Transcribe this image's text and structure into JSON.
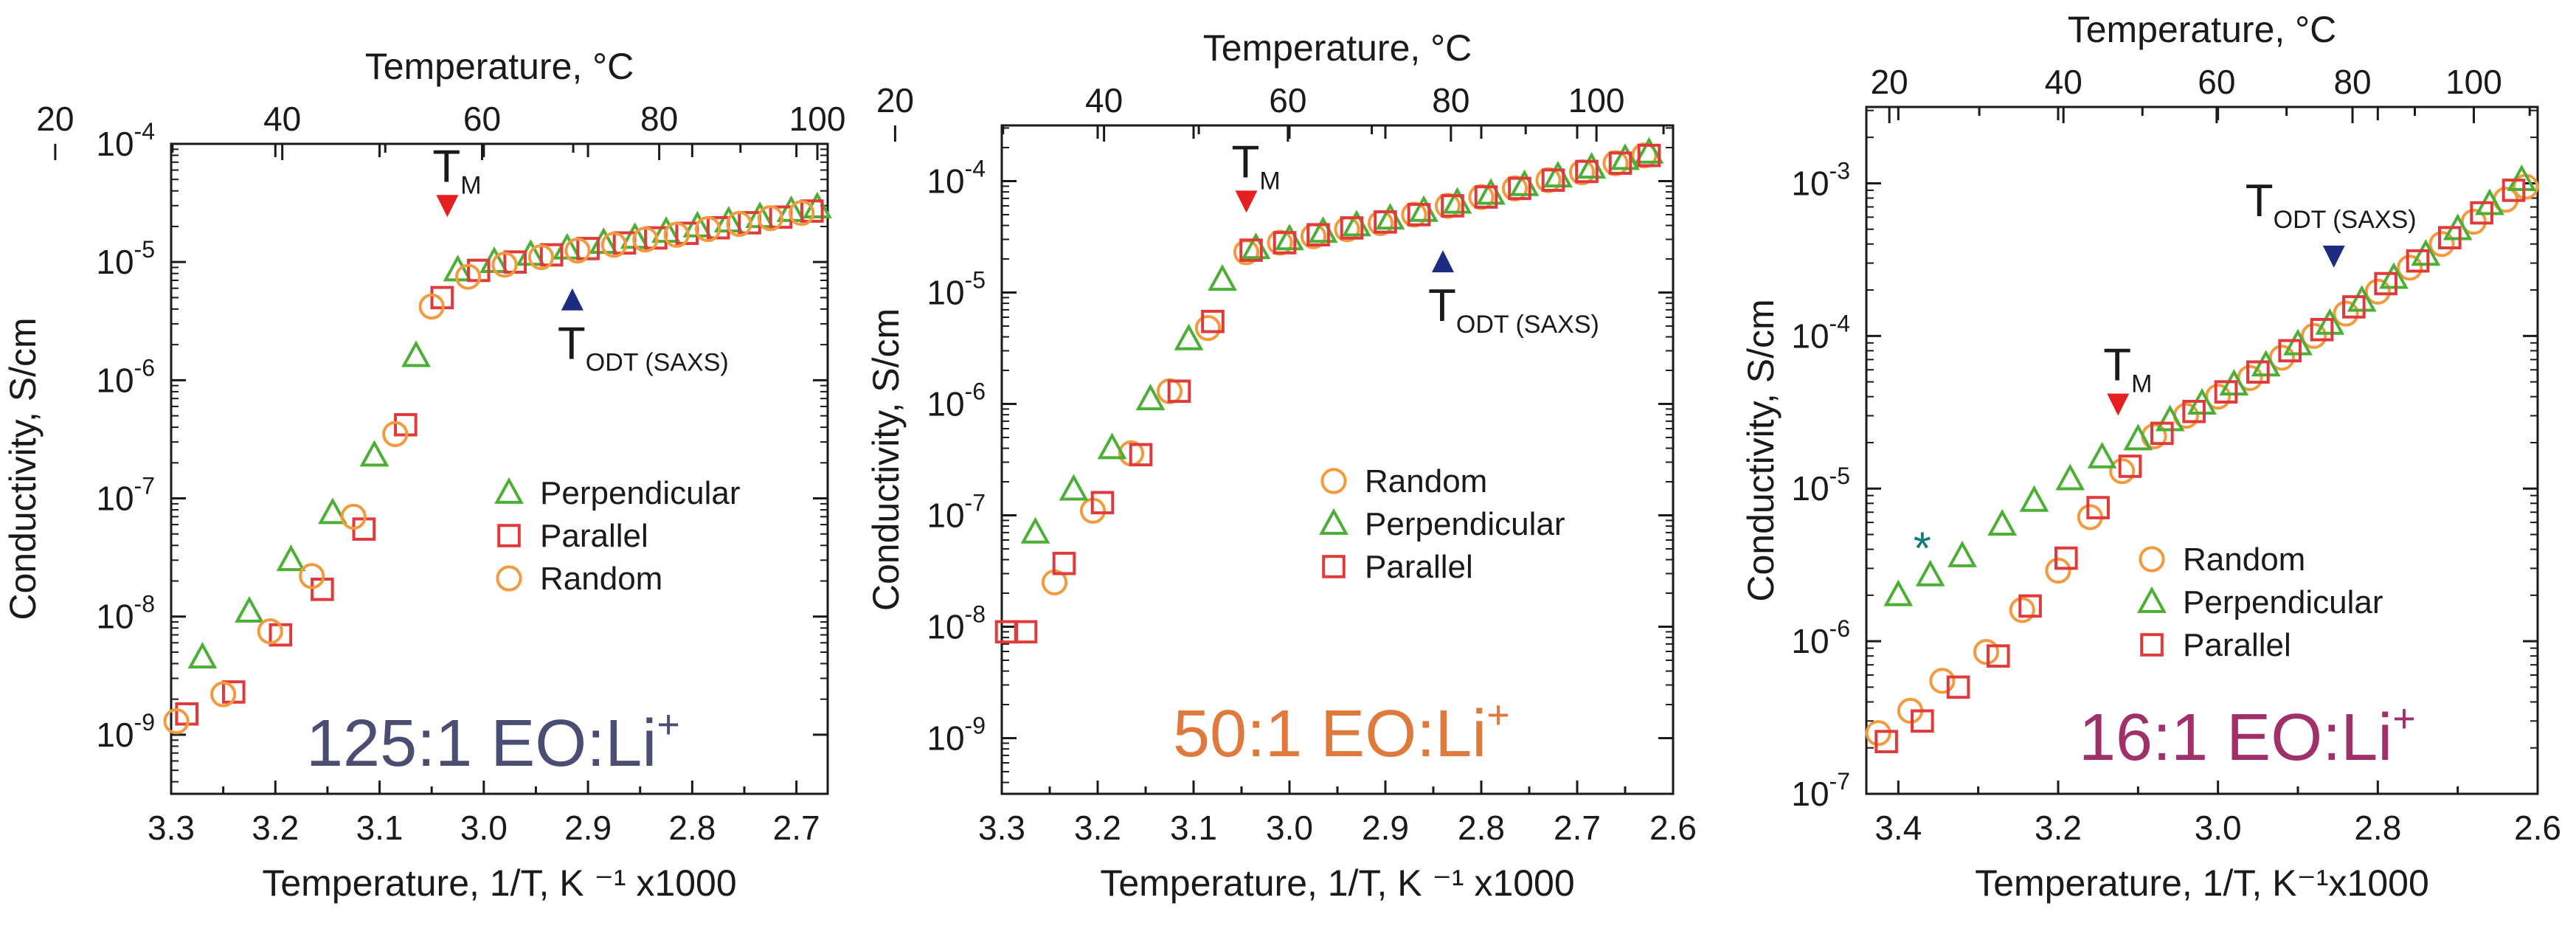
{
  "chart_data": [
    {
      "type": "scatter",
      "title": "125:1 EO:Li",
      "title_sup": "+",
      "title_color": "#4a4e72",
      "xlabel": "Temperature, 1/T, K ⁻¹ x1000",
      "ylabel": "Conductivity, S/cm",
      "top_xlabel": "Temperature, °C",
      "xlim": [
        3.3,
        2.67
      ],
      "ylim_log10": [
        -9.5,
        -4
      ],
      "yscale": "log",
      "xticks": [
        3.3,
        3.2,
        3.1,
        3.0,
        2.9,
        2.8,
        2.7
      ],
      "xtick_labels": [
        "3.3",
        "3.2",
        "3.1",
        "3.0",
        "2.9",
        "2.8",
        "2.7"
      ],
      "ytick_exponents": [
        -9,
        -8,
        -7,
        -6,
        -5,
        -4
      ],
      "top_ticks_c": [
        20,
        40,
        60,
        80,
        100
      ],
      "top_tick_labels": [
        "20",
        "40",
        "60",
        "80",
        "100"
      ],
      "legend": {
        "position": "center-right",
        "entries": [
          "Perpendicular",
          "Parallel",
          "Random"
        ]
      },
      "series": [
        {
          "name": "Perpendicular",
          "marker": "triangle",
          "color": "#4caf35",
          "x": [
            3.27,
            3.225,
            3.185,
            3.145,
            3.105,
            3.065,
            3.025,
            2.99,
            2.955,
            2.92,
            2.885,
            2.855,
            2.825,
            2.795,
            2.765,
            2.735,
            2.705,
            2.68
          ],
          "y": [
            4.5e-09,
            1.1e-08,
            3e-08,
            7.5e-08,
            2.3e-07,
            1.6e-06,
            8.5e-06,
            1e-05,
            1.15e-05,
            1.3e-05,
            1.45e-05,
            1.6e-05,
            1.8e-05,
            2e-05,
            2.2e-05,
            2.4e-05,
            2.7e-05,
            2.9e-05
          ]
        },
        {
          "name": "Parallel",
          "marker": "square",
          "color": "#e03a3a",
          "x": [
            3.285,
            3.24,
            3.195,
            3.155,
            3.115,
            3.075,
            3.04,
            3.005,
            2.97,
            2.935,
            2.9,
            2.865,
            2.835,
            2.805,
            2.775,
            2.745,
            2.715,
            2.685
          ],
          "y": [
            1.5e-09,
            2.3e-09,
            7e-09,
            1.7e-08,
            5.5e-08,
            4.2e-07,
            5e-06,
            8.5e-06,
            1e-05,
            1.15e-05,
            1.3e-05,
            1.45e-05,
            1.6e-05,
            1.75e-05,
            1.95e-05,
            2.15e-05,
            2.4e-05,
            2.7e-05
          ]
        },
        {
          "name": "Random",
          "marker": "circle",
          "color": "#f39a3c",
          "x": [
            3.295,
            3.25,
            3.205,
            3.165,
            3.125,
            3.085,
            3.05,
            3.015,
            2.98,
            2.945,
            2.91,
            2.875,
            2.845,
            2.815,
            2.785,
            2.755,
            2.725,
            2.695
          ],
          "y": [
            1.3e-09,
            2.2e-09,
            7.5e-09,
            2.2e-08,
            7e-08,
            3.5e-07,
            4.2e-06,
            7.5e-06,
            9.5e-06,
            1.1e-05,
            1.25e-05,
            1.4e-05,
            1.55e-05,
            1.7e-05,
            1.9e-05,
            2.1e-05,
            2.35e-05,
            2.6e-05
          ]
        }
      ],
      "annotations": [
        {
          "label": "T",
          "sub": "M",
          "color": "#e62020",
          "direction": "down",
          "x": 3.035,
          "y": 2.4e-05
        },
        {
          "label": "T",
          "sub": "ODT (SAXS)",
          "color": "#1d2c80",
          "direction": "up",
          "x": 2.915,
          "y": 6e-06
        }
      ]
    },
    {
      "type": "scatter",
      "title": "50:1 EO:Li",
      "title_sup": "+",
      "title_color": "#e07a3c",
      "xlabel": "Temperature, 1/T, K ⁻¹ x1000",
      "ylabel": "Conductivity, S/cm",
      "top_xlabel": "Temperature, °C",
      "xlim": [
        3.3,
        2.6
      ],
      "ylim_log10": [
        -9.5,
        -3.5
      ],
      "yscale": "log",
      "xticks": [
        3.3,
        3.2,
        3.1,
        3.0,
        2.9,
        2.8,
        2.7,
        2.6
      ],
      "xtick_labels": [
        "3.3",
        "3.2",
        "3.1",
        "3.0",
        "2.9",
        "2.8",
        "2.7",
        "2.6"
      ],
      "ytick_exponents": [
        -9,
        -8,
        -7,
        -6,
        -5,
        -4
      ],
      "top_ticks_c": [
        20,
        40,
        60,
        80,
        100
      ],
      "top_tick_labels": [
        "20",
        "40",
        "60",
        "80",
        "100"
      ],
      "legend": {
        "position": "center-right",
        "entries": [
          "Random",
          "Perpendicular",
          "Parallel"
        ]
      },
      "series": [
        {
          "name": "Random",
          "marker": "circle",
          "color": "#f39a3c",
          "x": [
            3.245,
            3.205,
            3.165,
            3.125,
            3.085,
            3.045,
            3.01,
            2.975,
            2.94,
            2.905,
            2.87,
            2.835,
            2.8,
            2.765,
            2.73,
            2.695,
            2.66,
            2.63
          ],
          "y": [
            2.5e-08,
            1.1e-07,
            3.6e-07,
            1.3e-06,
            4.8e-06,
            2.3e-05,
            2.8e-05,
            3.2e-05,
            3.7e-05,
            4.2e-05,
            5e-05,
            6e-05,
            7.2e-05,
            8.6e-05,
            0.000102,
            0.00012,
            0.000145,
            0.00017
          ]
        },
        {
          "name": "Perpendicular",
          "marker": "triangle",
          "color": "#4caf35",
          "x": [
            3.265,
            3.225,
            3.185,
            3.145,
            3.105,
            3.07,
            3.035,
            3.0,
            2.965,
            2.93,
            2.895,
            2.86,
            2.825,
            2.79,
            2.755,
            2.72,
            2.685,
            2.65,
            2.625
          ],
          "y": [
            7e-08,
            1.7e-07,
            4e-07,
            1.1e-06,
            3.8e-06,
            1.3e-05,
            2.5e-05,
            3e-05,
            3.5e-05,
            4e-05,
            4.6e-05,
            5.4e-05,
            6.4e-05,
            7.7e-05,
            9.2e-05,
            0.00011,
            0.000132,
            0.000158,
            0.00018
          ]
        },
        {
          "name": "Parallel",
          "marker": "square",
          "color": "#e03a3a",
          "x": [
            3.295,
            3.275,
            3.235,
            3.195,
            3.155,
            3.115,
            3.08,
            3.04,
            3.005,
            2.97,
            2.935,
            2.9,
            2.865,
            2.83,
            2.795,
            2.76,
            2.725,
            2.69,
            2.655,
            2.625
          ],
          "y": [
            9e-09,
            9e-09,
            3.7e-08,
            1.3e-07,
            3.5e-07,
            1.3e-06,
            5.5e-06,
            2.4e-05,
            2.8e-05,
            3.3e-05,
            3.8e-05,
            4.3e-05,
            5e-05,
            6e-05,
            7.2e-05,
            8.6e-05,
            0.000102,
            0.000122,
            0.000145,
            0.00017
          ]
        }
      ],
      "annotations": [
        {
          "label": "T",
          "sub": "M",
          "color": "#e62020",
          "direction": "down",
          "x": 3.045,
          "y": 5.2e-05
        },
        {
          "label": "T",
          "sub": "ODT (SAXS)",
          "color": "#1d2c80",
          "direction": "up",
          "x": 2.84,
          "y": 2.4e-05
        }
      ]
    },
    {
      "type": "scatter",
      "title": "16:1 EO:Li",
      "title_sup": "+",
      "title_color": "#a0306a",
      "xlabel": "Temperature, 1/T, K⁻¹x1000",
      "ylabel": "Conductivity, S/cm",
      "top_xlabel": "Temperature, °C",
      "xlim": [
        3.44,
        2.6
      ],
      "ylim_log10": [
        -7,
        -2.5
      ],
      "yscale": "log",
      "xticks": [
        3.4,
        3.2,
        3.0,
        2.8,
        2.6
      ],
      "xtick_labels": [
        "3.4",
        "3.2",
        "3.0",
        "2.8",
        "2.6"
      ],
      "ytick_exponents": [
        -7,
        -6,
        -5,
        -4,
        -3
      ],
      "top_ticks_c": [
        20,
        40,
        60,
        80,
        100
      ],
      "top_tick_labels": [
        "20",
        "40",
        "60",
        "80",
        "100"
      ],
      "legend": {
        "position": "bottom-right",
        "entries": [
          "Random",
          "Perpendicular",
          "Parallel"
        ]
      },
      "series": [
        {
          "name": "Random",
          "marker": "circle",
          "color": "#f39a3c",
          "x": [
            3.425,
            3.385,
            3.345,
            3.29,
            3.245,
            3.2,
            3.16,
            3.12,
            3.08,
            3.04,
            3.0,
            2.96,
            2.92,
            2.88,
            2.84,
            2.8,
            2.76,
            2.72,
            2.68,
            2.64,
            2.615
          ],
          "y": [
            2.5e-07,
            3.5e-07,
            5.5e-07,
            8.5e-07,
            1.6e-06,
            2.9e-06,
            6.5e-06,
            1.3e-05,
            2.2e-05,
            3e-05,
            4e-05,
            5.3e-05,
            7.2e-05,
            0.0001,
            0.00014,
            0.000195,
            0.00028,
            0.0004,
            0.00056,
            0.00078,
            0.00095
          ]
        },
        {
          "name": "Perpendicular",
          "marker": "triangle",
          "color": "#4caf35",
          "x": [
            3.4,
            3.36,
            3.32,
            3.27,
            3.23,
            3.185,
            3.145,
            3.1,
            3.06,
            3.02,
            2.98,
            2.94,
            2.9,
            2.86,
            2.82,
            2.78,
            2.74,
            2.7,
            2.66,
            2.62
          ],
          "y": [
            2e-06,
            2.7e-06,
            3.6e-06,
            5.8e-06,
            8.3e-06,
            1.15e-05,
            1.6e-05,
            2.1e-05,
            2.8e-05,
            3.6e-05,
            4.8e-05,
            6.4e-05,
            8.8e-05,
            0.00012,
            0.00017,
            0.00024,
            0.00034,
            0.0005,
            0.00073,
            0.00105
          ]
        },
        {
          "name": "Parallel",
          "marker": "square",
          "color": "#e03a3a",
          "x": [
            3.415,
            3.37,
            3.325,
            3.275,
            3.235,
            3.19,
            3.15,
            3.11,
            3.07,
            3.03,
            2.99,
            2.95,
            2.91,
            2.87,
            2.83,
            2.79,
            2.75,
            2.71,
            2.67,
            2.63
          ],
          "y": [
            2.2e-07,
            3e-07,
            5e-07,
            8e-07,
            1.7e-06,
            3.5e-06,
            7.5e-06,
            1.4e-05,
            2.3e-05,
            3.2e-05,
            4.3e-05,
            5.8e-05,
            8e-05,
            0.00011,
            0.000155,
            0.00022,
            0.00031,
            0.00044,
            0.00064,
            0.0009
          ]
        }
      ],
      "annotations": [
        {
          "label": "T",
          "sub": "M",
          "color": "#e62020",
          "direction": "down",
          "x": 3.125,
          "y": 3e-05
        },
        {
          "label": "T",
          "sub": "ODT (SAXS)",
          "color": "#1d2c80",
          "direction": "down",
          "x": 2.855,
          "y": 0.00028
        },
        {
          "label": "*",
          "sub": "",
          "color": "#157a7a",
          "direction": "none",
          "x": 3.37,
          "y": 5e-06
        }
      ]
    }
  ]
}
